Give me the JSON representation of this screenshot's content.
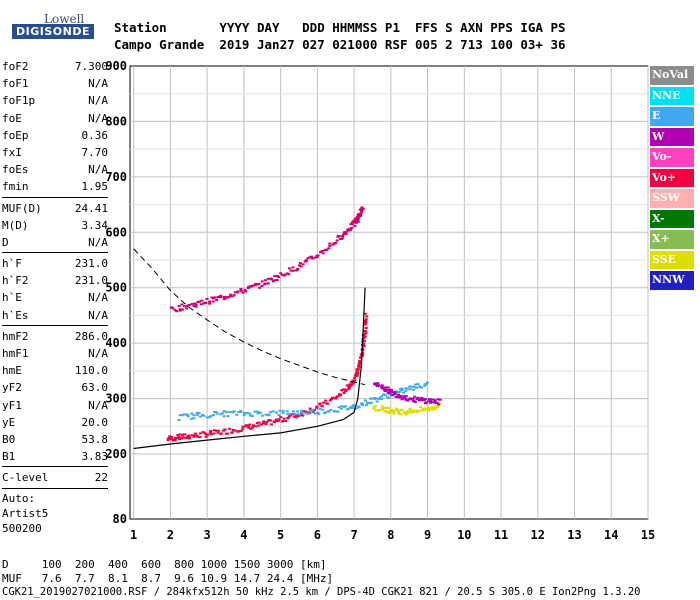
{
  "logo": {
    "line1": "Lowell",
    "line2": "DIGISONDE"
  },
  "header": {
    "row1": "Station       YYYY DAY   DDD HHMMSS P1  FFS S AXN PPS IGA PS",
    "row2": "Campo Grande  2019 Jan27 027 021000 RSF 005 2 713 100 03+ 36"
  },
  "params_group1": [
    {
      "name": "foF2",
      "value": "7.300"
    },
    {
      "name": "foF1",
      "value": "N/A"
    },
    {
      "name": "foF1p",
      "value": "N/A"
    },
    {
      "name": "foE",
      "value": "N/A"
    },
    {
      "name": "foEp",
      "value": "0.36"
    },
    {
      "name": "fxI",
      "value": "7.70"
    },
    {
      "name": "foEs",
      "value": "N/A"
    },
    {
      "name": "fmin",
      "value": "1.95"
    }
  ],
  "params_group2": [
    {
      "name": "MUF(D)",
      "value": "24.41"
    },
    {
      "name": "M(D)",
      "value": "3.34"
    },
    {
      "name": "D",
      "value": "N/A"
    }
  ],
  "params_group3": [
    {
      "name": "h`F",
      "value": "231.0"
    },
    {
      "name": "h`F2",
      "value": "231.0"
    },
    {
      "name": "h`E",
      "value": "N/A"
    },
    {
      "name": "h`Es",
      "value": "N/A"
    }
  ],
  "params_group4": [
    {
      "name": "hmF2",
      "value": "286.0"
    },
    {
      "name": "hmF1",
      "value": "N/A"
    },
    {
      "name": "hmE",
      "value": "110.0"
    },
    {
      "name": "yF2",
      "value": "63.0"
    },
    {
      "name": "yF1",
      "value": "N/A"
    },
    {
      "name": "yE",
      "value": "20.0"
    },
    {
      "name": "B0",
      "value": "53.8"
    },
    {
      "name": "B1",
      "value": "3.83"
    }
  ],
  "params_group5": [
    {
      "name": "C-level",
      "value": "22"
    }
  ],
  "auto": {
    "line1": "Auto:",
    "line2": "Artist5",
    "line3": "500200"
  },
  "legend": [
    {
      "label": "NoVal",
      "color": "#8c8c8c"
    },
    {
      "label": "NNE",
      "color": "#00e0f0"
    },
    {
      "label": "E",
      "color": "#3fa8ef"
    },
    {
      "label": "W",
      "color": "#b000b0"
    },
    {
      "label": "Vo-",
      "color": "#ff40c0"
    },
    {
      "label": "Vo+",
      "color": "#f00040"
    },
    {
      "label": "SSW",
      "color": "#ffb0b0"
    },
    {
      "label": "X-",
      "color": "#007800"
    },
    {
      "label": "X+",
      "color": "#88bb55"
    },
    {
      "label": "SSE",
      "color": "#dddd00"
    },
    {
      "label": "NNW",
      "color": "#2020c0"
    }
  ],
  "footer": {
    "d_row": "D     100  200  400  600  800 1000 1500 3000 [km]",
    "muf_row": "MUF   7.6  7.7  8.1  8.7  9.6 10.9 14.7 24.4 [MHz]",
    "file_row": "CGK21_2019027021000.RSF / 284kfx512h 50 kHz 2.5 km / DPS-4D CGK21 821 / 20.5 S 305.0 E Ion2Png 1.3.20"
  },
  "chart_data": {
    "type": "scatter",
    "title": "",
    "xlabel": "",
    "ylabel": "",
    "xlim": [
      0.9,
      15
    ],
    "ylim": [
      80,
      900
    ],
    "x_ticks": [
      1,
      2,
      3,
      4,
      5,
      6,
      7,
      8,
      9,
      10,
      11,
      12,
      13,
      14,
      15
    ],
    "y_ticks": [
      80,
      200,
      300,
      400,
      500,
      600,
      700,
      800,
      900
    ],
    "grid": true,
    "series": [
      {
        "name": "Vo+",
        "color": "#f00040",
        "x": [
          1.9,
          2.2,
          2.5,
          3.0,
          3.5,
          4.0,
          4.5,
          5.0,
          5.5,
          6.0,
          6.5,
          6.8,
          7.0,
          7.1,
          7.2,
          7.25,
          7.3
        ],
        "y": [
          229,
          232,
          234,
          238,
          243,
          249,
          256,
          264,
          274,
          287,
          305,
          322,
          340,
          360,
          390,
          420,
          455
        ]
      },
      {
        "name": "Vo+ 2-hop",
        "color": "#d0006a",
        "x": [
          2.0,
          2.5,
          3.0,
          3.5,
          4.0,
          4.5,
          5.0,
          5.5,
          6.0,
          6.5,
          6.8,
          7.0,
          7.1,
          7.2
        ],
        "y": [
          462,
          470,
          478,
          487,
          498,
          510,
          525,
          542,
          562,
          588,
          606,
          620,
          632,
          645
        ]
      },
      {
        "name": "E",
        "color": "#3fa8ef",
        "x": [
          2.2,
          2.8,
          3.5,
          4.2,
          5.0,
          5.8,
          6.5,
          7.0,
          7.5,
          8.0,
          8.5,
          9.0
        ],
        "y": [
          268,
          272,
          275,
          275,
          276,
          278,
          282,
          288,
          300,
          310,
          320,
          330
        ]
      },
      {
        "name": "SSE",
        "color": "#dddd00",
        "x": [
          7.5,
          7.8,
          8.0,
          8.3,
          8.6,
          9.0,
          9.3
        ],
        "y": [
          285,
          282,
          280,
          278,
          280,
          283,
          290
        ]
      },
      {
        "name": "W",
        "color": "#b000b0",
        "x": [
          7.5,
          7.8,
          8.0,
          8.3,
          8.6,
          9.0,
          9.3
        ],
        "y": [
          330,
          320,
          312,
          305,
          300,
          298,
          295
        ]
      }
    ],
    "profile_solid": {
      "x": [
        1.0,
        2.0,
        3.0,
        4.0,
        5.0,
        6.0,
        6.7,
        7.0,
        7.1,
        7.2,
        7.25,
        7.3
      ],
      "y": [
        210,
        218,
        225,
        232,
        238,
        250,
        262,
        275,
        300,
        360,
        430,
        500
      ]
    },
    "profile_dashed": {
      "x": [
        1.0,
        1.5,
        2.0,
        2.5,
        3.0,
        3.5,
        4.0,
        4.5,
        5.0,
        5.5,
        6.0,
        6.5,
        7.0,
        7.3
      ],
      "y": [
        570,
        535,
        495,
        465,
        442,
        420,
        402,
        386,
        372,
        360,
        348,
        338,
        330,
        325
      ]
    }
  }
}
